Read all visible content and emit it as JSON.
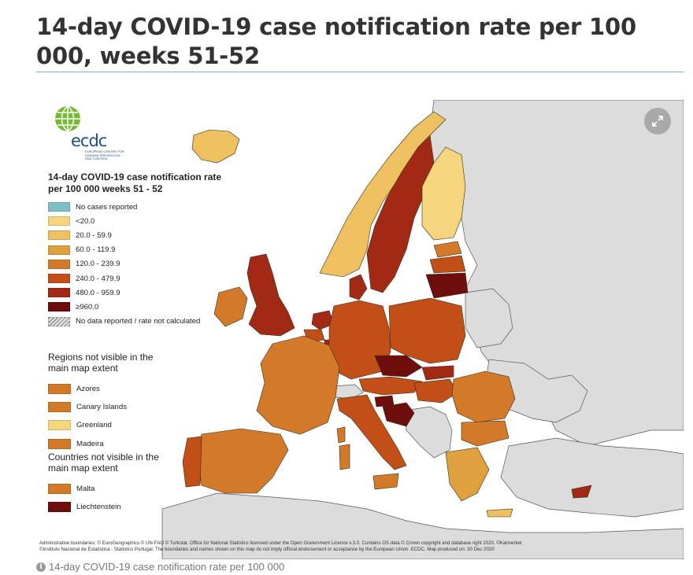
{
  "page": {
    "title": "14-day COVID-19 case notification rate per 100 000, weeks 51-52",
    "caption": "14-day COVID-19 case notification rate per 100 000"
  },
  "logo": {
    "text": "ecdc",
    "subtitle": "European Centre for Disease Prevention and Control"
  },
  "legend": {
    "title": "14-day COVID-19 case notification rate per 100 000 weeks 51 - 52",
    "items": [
      {
        "label": "No cases reported",
        "color": "#7fbfc9"
      },
      {
        "label": "<20.0",
        "color": "#f5d57e"
      },
      {
        "label": "20.0 - 59.9",
        "color": "#eec060"
      },
      {
        "label": "60.0 - 119.9",
        "color": "#e1a040"
      },
      {
        "label": "120.0 - 239.9",
        "color": "#d37a2a"
      },
      {
        "label": "240.0 - 479.9",
        "color": "#c24f18"
      },
      {
        "label": "480.0 - 959.9",
        "color": "#a22a14"
      },
      {
        "label": "≥960.0",
        "color": "#6e0e0c"
      },
      {
        "label": "No data reported / rate not calculated",
        "color": "#cccccc",
        "hatched": true
      }
    ]
  },
  "regions_not_visible": {
    "title": "Regions not visible in the main map extent",
    "items": [
      {
        "label": "Azores",
        "color": "#d37a2a"
      },
      {
        "label": "Canary Islands",
        "color": "#d37a2a"
      },
      {
        "label": "Greenland",
        "color": "#f5d57e"
      },
      {
        "label": "Madeira",
        "color": "#d37a2a"
      }
    ]
  },
  "countries_not_visible": {
    "title": "Countries not visible in the main map extent",
    "items": [
      {
        "label": "Malta",
        "color": "#d37a2a"
      },
      {
        "label": "Liechtenstein",
        "color": "#6e0e0c"
      }
    ]
  },
  "attribution": {
    "line1": "Administrative boundaries: © EuroGeographics © UN-FAO © Turkstat. Office for National Statistics licensed under the Open Government Licence v.3.0. Contains OS data © Crown copyright and database right 2020. ©Kartverket",
    "line2": "©Instituto Nacional de Estatística - Statistics Portugal. The boundaries and names shown on this map do not imply official endorsement or acceptance by the European Union. ECDC. Map produced on: 30 Dec 2020"
  },
  "map": {
    "colors": {
      "non_eu": "#dcdcdc",
      "sea": "#ffffff",
      "border": "#555555"
    }
  }
}
